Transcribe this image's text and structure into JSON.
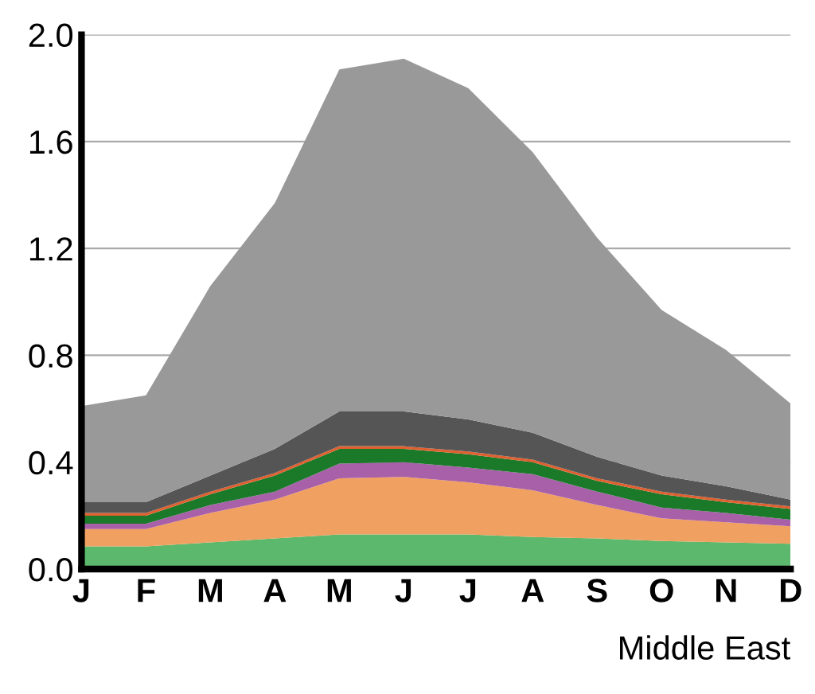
{
  "chart_data": {
    "type": "area",
    "stacked": true,
    "categories": [
      "J",
      "F",
      "M",
      "A",
      "M",
      "J",
      "J",
      "A",
      "S",
      "O",
      "N",
      "D"
    ],
    "series": [
      {
        "color": "#5cb86c",
        "values": [
          0.085,
          0.085,
          0.1,
          0.115,
          0.13,
          0.13,
          0.13,
          0.12,
          0.115,
          0.105,
          0.1,
          0.095
        ]
      },
      {
        "color": "#f0a060",
        "values": [
          0.065,
          0.065,
          0.11,
          0.145,
          0.21,
          0.215,
          0.195,
          0.175,
          0.125,
          0.085,
          0.075,
          0.065
        ]
      },
      {
        "color": "#a860a8",
        "values": [
          0.02,
          0.02,
          0.03,
          0.03,
          0.055,
          0.055,
          0.055,
          0.06,
          0.05,
          0.04,
          0.035,
          0.025
        ]
      },
      {
        "color": "#1a7a2a",
        "values": [
          0.03,
          0.03,
          0.04,
          0.06,
          0.055,
          0.05,
          0.05,
          0.045,
          0.04,
          0.05,
          0.04,
          0.04
        ]
      },
      {
        "color": "#e06030",
        "values": [
          0.01,
          0.01,
          0.01,
          0.01,
          0.01,
          0.01,
          0.01,
          0.01,
          0.01,
          0.01,
          0.01,
          0.01
        ]
      },
      {
        "color": "#555555",
        "values": [
          0.04,
          0.04,
          0.06,
          0.09,
          0.13,
          0.13,
          0.12,
          0.1,
          0.08,
          0.06,
          0.05,
          0.025
        ]
      },
      {
        "color": "#999999",
        "values": [
          0.36,
          0.4,
          0.71,
          0.92,
          1.28,
          1.32,
          1.24,
          1.05,
          0.82,
          0.62,
          0.51,
          0.36
        ]
      }
    ],
    "ylim": [
      0,
      2.0
    ],
    "yticks": [
      {
        "value": 0,
        "label": "0.0"
      },
      0.4,
      0.8,
      1.2,
      1.6,
      {
        "value": 2,
        "label": "2.0"
      }
    ],
    "grid": "y",
    "annotations": [
      "Middle East"
    ]
  }
}
